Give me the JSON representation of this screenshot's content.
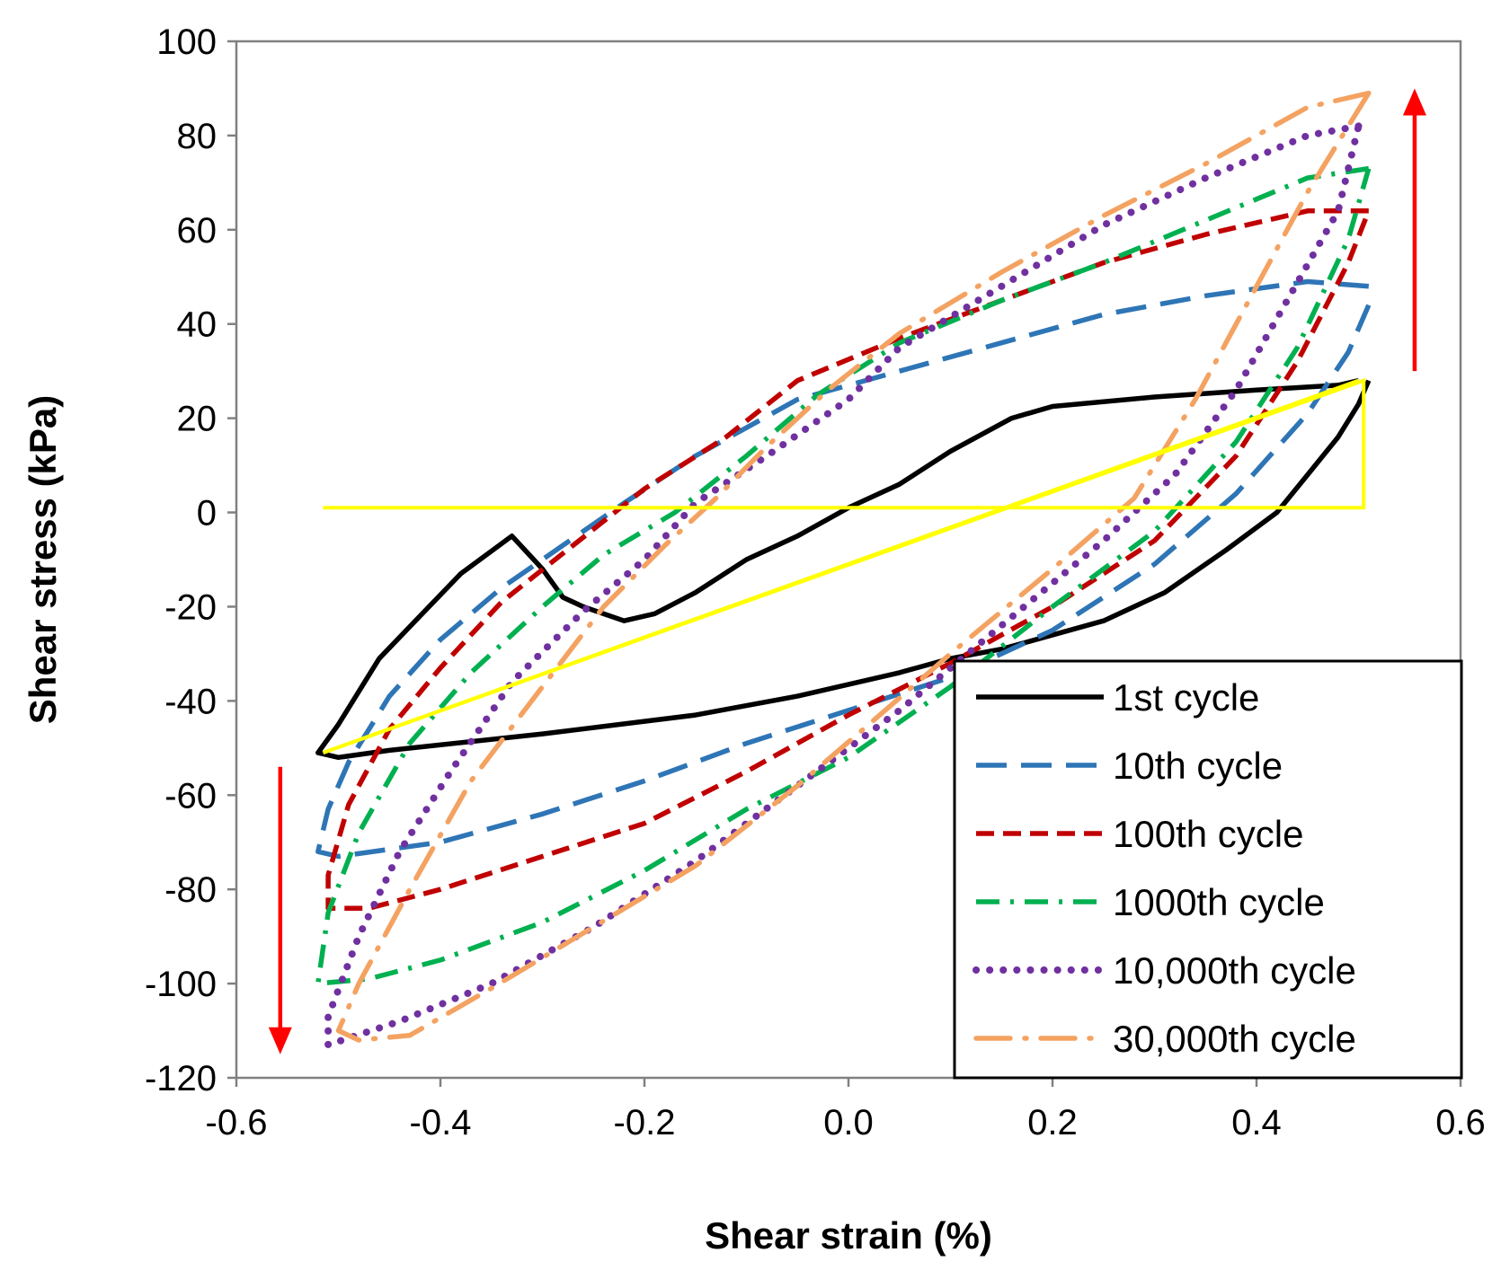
{
  "chart_data": {
    "type": "line",
    "title": "",
    "xlabel": "Shear strain (%)",
    "ylabel": "Shear stress (kPa)",
    "xlim": [
      -0.6,
      0.6
    ],
    "ylim": [
      -120,
      100
    ],
    "xticks": [
      -0.6,
      -0.4,
      -0.2,
      0.0,
      0.2,
      0.4,
      0.6
    ],
    "xtick_labels": [
      "-0.6",
      "-0.4",
      "-0.2",
      "0.0",
      "0.2",
      "0.4",
      "0.6"
    ],
    "yticks": [
      100,
      80,
      60,
      40,
      20,
      0,
      -20,
      -40,
      -60,
      -80,
      -100,
      -120
    ],
    "ytick_labels": [
      "100",
      "80",
      "60",
      "40",
      "20",
      "0",
      "-20",
      "-40",
      "-60",
      "-80",
      "-100",
      "-120"
    ],
    "grid": false,
    "legend_position": "lower-right",
    "series": [
      {
        "name": "1st cycle",
        "color": "#000000",
        "dash": "solid",
        "points": [
          [
            0.5,
            28
          ],
          [
            0.48,
            27
          ],
          [
            0.4,
            26
          ],
          [
            0.3,
            24.5
          ],
          [
            0.2,
            22.5
          ],
          [
            0.16,
            20
          ],
          [
            0.1,
            13
          ],
          [
            0.05,
            6
          ],
          [
            0.0,
            1
          ],
          [
            -0.05,
            -5
          ],
          [
            -0.1,
            -10
          ],
          [
            -0.15,
            -17
          ],
          [
            -0.19,
            -21.5
          ],
          [
            -0.22,
            -23
          ],
          [
            -0.26,
            -20
          ],
          [
            -0.28,
            -18
          ],
          [
            -0.3,
            -12
          ],
          [
            -0.33,
            -5
          ],
          [
            -0.38,
            -13
          ],
          [
            -0.42,
            -22
          ],
          [
            -0.46,
            -31
          ],
          [
            -0.5,
            -45
          ],
          [
            -0.52,
            -51
          ],
          [
            -0.5,
            -52
          ],
          [
            -0.45,
            -50.5
          ],
          [
            -0.3,
            -47
          ],
          [
            -0.15,
            -43
          ],
          [
            -0.05,
            -39
          ],
          [
            0.05,
            -34
          ],
          [
            0.1,
            -31
          ],
          [
            0.15,
            -29
          ],
          [
            0.25,
            -23
          ],
          [
            0.31,
            -17
          ],
          [
            0.37,
            -8
          ],
          [
            0.42,
            0
          ],
          [
            0.45,
            8
          ],
          [
            0.48,
            16
          ],
          [
            0.5,
            23
          ],
          [
            0.51,
            28
          ]
        ]
      },
      {
        "name": "10th cycle",
        "color": "#2e75b6",
        "dash": "long",
        "points": [
          [
            0.51,
            48
          ],
          [
            0.45,
            49
          ],
          [
            0.35,
            46
          ],
          [
            0.25,
            42
          ],
          [
            0.15,
            36
          ],
          [
            0.05,
            30
          ],
          [
            -0.05,
            24
          ],
          [
            -0.15,
            12
          ],
          [
            -0.22,
            2
          ],
          [
            -0.28,
            -7
          ],
          [
            -0.34,
            -16
          ],
          [
            -0.4,
            -27
          ],
          [
            -0.45,
            -39
          ],
          [
            -0.49,
            -53
          ],
          [
            -0.51,
            -63
          ],
          [
            -0.52,
            -72
          ],
          [
            -0.5,
            -73
          ],
          [
            -0.4,
            -70
          ],
          [
            -0.3,
            -64
          ],
          [
            -0.2,
            -57
          ],
          [
            -0.1,
            -49
          ],
          [
            0.0,
            -42
          ],
          [
            0.1,
            -35
          ],
          [
            0.2,
            -25
          ],
          [
            0.3,
            -11
          ],
          [
            0.38,
            4
          ],
          [
            0.45,
            21
          ],
          [
            0.49,
            34
          ],
          [
            0.51,
            44
          ]
        ]
      },
      {
        "name": "100th cycle",
        "color": "#c00000",
        "dash": "medium",
        "points": [
          [
            0.51,
            64
          ],
          [
            0.45,
            64
          ],
          [
            0.35,
            59
          ],
          [
            0.25,
            53
          ],
          [
            0.15,
            45
          ],
          [
            0.05,
            37
          ],
          [
            -0.05,
            28
          ],
          [
            -0.12,
            16
          ],
          [
            -0.2,
            5
          ],
          [
            -0.27,
            -7
          ],
          [
            -0.34,
            -19
          ],
          [
            -0.4,
            -33
          ],
          [
            -0.45,
            -46
          ],
          [
            -0.49,
            -62
          ],
          [
            -0.51,
            -77
          ],
          [
            -0.51,
            -84
          ],
          [
            -0.47,
            -84
          ],
          [
            -0.4,
            -80
          ],
          [
            -0.3,
            -73
          ],
          [
            -0.2,
            -66
          ],
          [
            -0.1,
            -55
          ],
          [
            0.0,
            -43
          ],
          [
            0.1,
            -32
          ],
          [
            0.2,
            -20
          ],
          [
            0.3,
            -6
          ],
          [
            0.38,
            12
          ],
          [
            0.44,
            32
          ],
          [
            0.49,
            53
          ],
          [
            0.51,
            64
          ]
        ]
      },
      {
        "name": "1000th cycle",
        "color": "#00b050",
        "dash": "dashdot",
        "points": [
          [
            0.51,
            73
          ],
          [
            0.45,
            71
          ],
          [
            0.35,
            62
          ],
          [
            0.25,
            53
          ],
          [
            0.15,
            45
          ],
          [
            0.05,
            36
          ],
          [
            -0.03,
            25
          ],
          [
            -0.1,
            12
          ],
          [
            -0.17,
            0
          ],
          [
            -0.24,
            -9
          ],
          [
            -0.3,
            -20
          ],
          [
            -0.37,
            -34
          ],
          [
            -0.43,
            -49
          ],
          [
            -0.48,
            -68
          ],
          [
            -0.51,
            -85
          ],
          [
            -0.52,
            -100
          ],
          [
            -0.47,
            -99
          ],
          [
            -0.4,
            -95
          ],
          [
            -0.3,
            -87
          ],
          [
            -0.2,
            -76
          ],
          [
            -0.1,
            -63
          ],
          [
            0.0,
            -52
          ],
          [
            0.1,
            -37
          ],
          [
            0.2,
            -20
          ],
          [
            0.3,
            -4
          ],
          [
            0.38,
            15
          ],
          [
            0.44,
            35
          ],
          [
            0.49,
            58
          ],
          [
            0.51,
            73
          ]
        ]
      },
      {
        "name": "10,000th cycle",
        "color": "#7030a0",
        "dash": "dotted",
        "points": [
          [
            0.5,
            82
          ],
          [
            0.45,
            80
          ],
          [
            0.35,
            71
          ],
          [
            0.25,
            61
          ],
          [
            0.15,
            48
          ],
          [
            0.05,
            35
          ],
          [
            0.0,
            24
          ],
          [
            -0.08,
            12
          ],
          [
            -0.15,
            2
          ],
          [
            -0.2,
            -10
          ],
          [
            -0.26,
            -21
          ],
          [
            -0.33,
            -36
          ],
          [
            -0.39,
            -55
          ],
          [
            -0.44,
            -72
          ],
          [
            -0.48,
            -90
          ],
          [
            -0.51,
            -107
          ],
          [
            -0.51,
            -113
          ],
          [
            -0.44,
            -108
          ],
          [
            -0.35,
            -100
          ],
          [
            -0.25,
            -88
          ],
          [
            -0.15,
            -74
          ],
          [
            -0.05,
            -58
          ],
          [
            0.05,
            -42
          ],
          [
            0.15,
            -24
          ],
          [
            0.25,
            -6
          ],
          [
            0.32,
            8
          ],
          [
            0.38,
            26
          ],
          [
            0.43,
            45
          ],
          [
            0.48,
            64
          ],
          [
            0.5,
            82
          ]
        ]
      },
      {
        "name": "30,000th cycle",
        "color": "#f4a261",
        "dash": "longdashdot",
        "points": [
          [
            0.51,
            89
          ],
          [
            0.45,
            86
          ],
          [
            0.35,
            74
          ],
          [
            0.25,
            63
          ],
          [
            0.15,
            51
          ],
          [
            0.05,
            38
          ],
          [
            -0.02,
            26
          ],
          [
            -0.08,
            14
          ],
          [
            -0.13,
            3
          ],
          [
            -0.18,
            -7
          ],
          [
            -0.24,
            -20
          ],
          [
            -0.3,
            -37
          ],
          [
            -0.37,
            -57
          ],
          [
            -0.43,
            -80
          ],
          [
            -0.48,
            -100
          ],
          [
            -0.5,
            -110
          ],
          [
            -0.48,
            -112
          ],
          [
            -0.43,
            -111
          ],
          [
            -0.35,
            -101
          ],
          [
            -0.25,
            -88
          ],
          [
            -0.15,
            -75
          ],
          [
            -0.05,
            -58
          ],
          [
            0.02,
            -45
          ],
          [
            0.1,
            -30
          ],
          [
            0.2,
            -12
          ],
          [
            0.28,
            3
          ],
          [
            0.34,
            24
          ],
          [
            0.4,
            48
          ],
          [
            0.45,
            68
          ],
          [
            0.49,
            82
          ],
          [
            0.51,
            89
          ]
        ]
      }
    ],
    "annotations": {
      "reference_color": "#ffff00",
      "reference_line": [
        [
          -0.515,
          -51
        ],
        [
          0.5,
          28
        ]
      ],
      "reference_box": [
        [
          -0.515,
          1
        ],
        [
          0.505,
          1
        ],
        [
          0.505,
          28
        ],
        [
          -0.515,
          -51
        ]
      ],
      "arrow_color": "#ff0000",
      "arrow_up": [
        [
          0.555,
          30
        ],
        [
          0.555,
          90
        ]
      ],
      "arrow_down": [
        [
          -0.557,
          -54
        ],
        [
          -0.557,
          -115
        ]
      ]
    }
  }
}
